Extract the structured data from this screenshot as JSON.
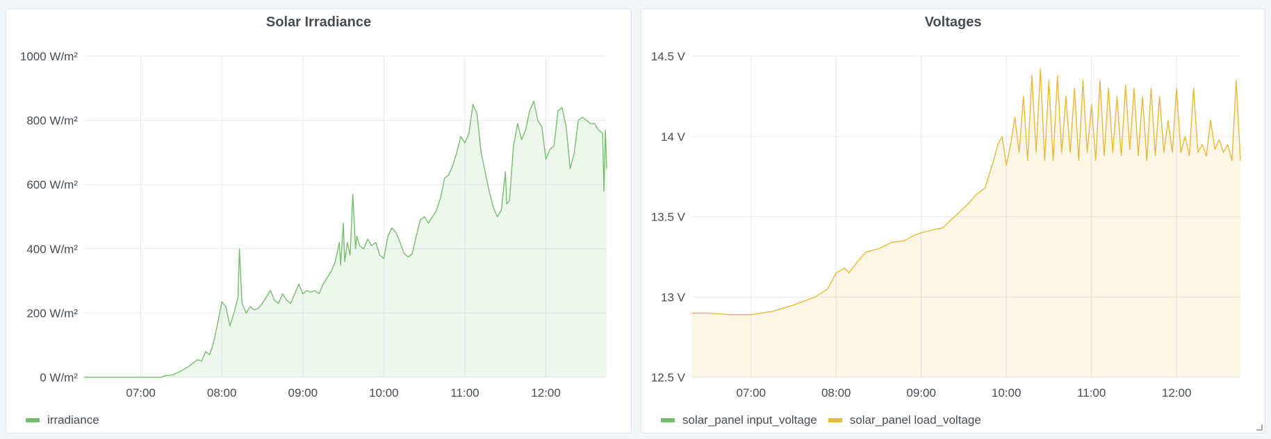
{
  "chart_data": [
    {
      "type": "area",
      "title": "Solar Irradiance",
      "x_labels": [
        "07:00",
        "08:00",
        "09:00",
        "10:00",
        "11:00",
        "12:00"
      ],
      "x_range": [
        "06:18",
        "12:45"
      ],
      "y_ticks": [
        "0 W/m²",
        "200 W/m²",
        "400 W/m²",
        "600 W/m²",
        "800 W/m²",
        "1000 W/m²"
      ],
      "ylim": [
        0,
        1000
      ],
      "grid": true,
      "legend_position": "bottom-left",
      "series": [
        {
          "name": "irradiance",
          "color": "#73bf69",
          "points": [
            [
              "06:18",
              0
            ],
            [
              "07:00",
              0
            ],
            [
              "07:15",
              0
            ],
            [
              "07:18",
              5
            ],
            [
              "07:24",
              8
            ],
            [
              "07:30",
              20
            ],
            [
              "07:36",
              35
            ],
            [
              "07:42",
              55
            ],
            [
              "07:45",
              50
            ],
            [
              "07:48",
              80
            ],
            [
              "07:51",
              70
            ],
            [
              "07:54",
              110
            ],
            [
              "07:57",
              170
            ],
            [
              "08:00",
              235
            ],
            [
              "08:03",
              220
            ],
            [
              "08:06",
              160
            ],
            [
              "08:09",
              200
            ],
            [
              "08:12",
              250
            ],
            [
              "08:13",
              400
            ],
            [
              "08:15",
              230
            ],
            [
              "08:18",
              200
            ],
            [
              "08:21",
              220
            ],
            [
              "08:24",
              210
            ],
            [
              "08:27",
              215
            ],
            [
              "08:30",
              230
            ],
            [
              "08:33",
              250
            ],
            [
              "08:36",
              270
            ],
            [
              "08:39",
              240
            ],
            [
              "08:42",
              230
            ],
            [
              "08:45",
              260
            ],
            [
              "08:48",
              240
            ],
            [
              "08:51",
              230
            ],
            [
              "08:54",
              260
            ],
            [
              "08:57",
              290
            ],
            [
              "09:00",
              260
            ],
            [
              "09:03",
              270
            ],
            [
              "09:06",
              265
            ],
            [
              "09:09",
              270
            ],
            [
              "09:12",
              260
            ],
            [
              "09:15",
              290
            ],
            [
              "09:18",
              310
            ],
            [
              "09:21",
              330
            ],
            [
              "09:24",
              360
            ],
            [
              "09:27",
              420
            ],
            [
              "09:28",
              350
            ],
            [
              "09:30",
              480
            ],
            [
              "09:31",
              360
            ],
            [
              "09:33",
              420
            ],
            [
              "09:35",
              380
            ],
            [
              "09:37",
              570
            ],
            [
              "09:39",
              400
            ],
            [
              "09:40",
              440
            ],
            [
              "09:42",
              410
            ],
            [
              "09:45",
              400
            ],
            [
              "09:48",
              430
            ],
            [
              "09:51",
              410
            ],
            [
              "09:54",
              420
            ],
            [
              "09:57",
              380
            ],
            [
              "10:00",
              370
            ],
            [
              "10:03",
              440
            ],
            [
              "10:06",
              465
            ],
            [
              "10:09",
              450
            ],
            [
              "10:12",
              420
            ],
            [
              "10:15",
              385
            ],
            [
              "10:18",
              375
            ],
            [
              "10:21",
              385
            ],
            [
              "10:24",
              440
            ],
            [
              "10:27",
              490
            ],
            [
              "10:30",
              500
            ],
            [
              "10:33",
              480
            ],
            [
              "10:36",
              500
            ],
            [
              "10:39",
              520
            ],
            [
              "10:42",
              560
            ],
            [
              "10:45",
              620
            ],
            [
              "10:48",
              630
            ],
            [
              "10:51",
              660
            ],
            [
              "10:54",
              700
            ],
            [
              "10:57",
              750
            ],
            [
              "11:00",
              730
            ],
            [
              "11:03",
              760
            ],
            [
              "11:06",
              850
            ],
            [
              "11:09",
              820
            ],
            [
              "11:12",
              700
            ],
            [
              "11:15",
              640
            ],
            [
              "11:18",
              580
            ],
            [
              "11:21",
              530
            ],
            [
              "11:24",
              500
            ],
            [
              "11:27",
              520
            ],
            [
              "11:30",
              640
            ],
            [
              "11:31",
              540
            ],
            [
              "11:33",
              550
            ],
            [
              "11:36",
              720
            ],
            [
              "11:39",
              790
            ],
            [
              "11:42",
              740
            ],
            [
              "11:45",
              770
            ],
            [
              "11:48",
              830
            ],
            [
              "11:51",
              860
            ],
            [
              "11:54",
              800
            ],
            [
              "11:57",
              780
            ],
            [
              "12:00",
              680
            ],
            [
              "12:03",
              710
            ],
            [
              "12:06",
              720
            ],
            [
              "12:09",
              830
            ],
            [
              "12:12",
              840
            ],
            [
              "12:15",
              780
            ],
            [
              "12:18",
              650
            ],
            [
              "12:21",
              700
            ],
            [
              "12:24",
              800
            ],
            [
              "12:27",
              810
            ],
            [
              "12:30",
              800
            ],
            [
              "12:33",
              790
            ],
            [
              "12:36",
              790
            ],
            [
              "12:39",
              770
            ],
            [
              "12:42",
              760
            ],
            [
              "12:43",
              580
            ],
            [
              "12:44",
              770
            ],
            [
              "12:45",
              650
            ]
          ]
        }
      ]
    },
    {
      "type": "area",
      "title": "Voltages",
      "x_labels": [
        "07:00",
        "08:00",
        "09:00",
        "10:00",
        "11:00",
        "12:00"
      ],
      "x_range": [
        "06:18",
        "12:45"
      ],
      "y_ticks": [
        "12.5 V",
        "13 V",
        "13.5 V",
        "14 V",
        "14.5 V"
      ],
      "ylim": [
        12.5,
        14.5
      ],
      "grid": true,
      "legend_position": "bottom-left",
      "series": [
        {
          "name": "solar_panel input_voltage",
          "color": "#73bf69",
          "points": []
        },
        {
          "name": "solar_panel load_voltage",
          "color": "#eab839",
          "points": [
            [
              "06:18",
              12.9
            ],
            [
              "06:30",
              12.9
            ],
            [
              "06:45",
              12.89
            ],
            [
              "07:00",
              12.89
            ],
            [
              "07:15",
              12.91
            ],
            [
              "07:30",
              12.95
            ],
            [
              "07:45",
              13.0
            ],
            [
              "07:54",
              13.05
            ],
            [
              "08:00",
              13.15
            ],
            [
              "08:06",
              13.18
            ],
            [
              "08:09",
              13.15
            ],
            [
              "08:15",
              13.22
            ],
            [
              "08:21",
              13.28
            ],
            [
              "08:30",
              13.3
            ],
            [
              "08:39",
              13.34
            ],
            [
              "08:48",
              13.35
            ],
            [
              "08:54",
              13.38
            ],
            [
              "09:00",
              13.4
            ],
            [
              "09:09",
              13.42
            ],
            [
              "09:15",
              13.43
            ],
            [
              "09:21",
              13.48
            ],
            [
              "09:27",
              13.53
            ],
            [
              "09:33",
              13.58
            ],
            [
              "09:39",
              13.64
            ],
            [
              "09:45",
              13.68
            ],
            [
              "09:51",
              13.85
            ],
            [
              "09:54",
              13.95
            ],
            [
              "09:57",
              14.0
            ],
            [
              "10:00",
              13.82
            ],
            [
              "10:03",
              13.95
            ],
            [
              "10:06",
              14.12
            ],
            [
              "10:09",
              13.9
            ],
            [
              "10:12",
              14.25
            ],
            [
              "10:15",
              13.85
            ],
            [
              "10:18",
              14.38
            ],
            [
              "10:21",
              13.9
            ],
            [
              "10:24",
              14.42
            ],
            [
              "10:27",
              13.85
            ],
            [
              "10:30",
              14.35
            ],
            [
              "10:33",
              13.85
            ],
            [
              "10:36",
              14.38
            ],
            [
              "10:39",
              13.9
            ],
            [
              "10:42",
              14.25
            ],
            [
              "10:45",
              13.9
            ],
            [
              "10:48",
              14.3
            ],
            [
              "10:51",
              13.85
            ],
            [
              "10:54",
              14.35
            ],
            [
              "10:57",
              13.9
            ],
            [
              "11:00",
              14.2
            ],
            [
              "11:03",
              13.85
            ],
            [
              "11:06",
              14.35
            ],
            [
              "11:09",
              13.88
            ],
            [
              "11:12",
              14.3
            ],
            [
              "11:15",
              13.9
            ],
            [
              "11:18",
              14.25
            ],
            [
              "11:21",
              13.88
            ],
            [
              "11:24",
              14.32
            ],
            [
              "11:27",
              13.92
            ],
            [
              "11:30",
              14.3
            ],
            [
              "11:33",
              13.88
            ],
            [
              "11:36",
              14.25
            ],
            [
              "11:39",
              13.85
            ],
            [
              "11:42",
              14.3
            ],
            [
              "11:45",
              13.88
            ],
            [
              "11:48",
              14.25
            ],
            [
              "11:51",
              13.9
            ],
            [
              "11:54",
              14.1
            ],
            [
              "11:57",
              13.9
            ],
            [
              "12:00",
              14.3
            ],
            [
              "12:03",
              13.9
            ],
            [
              "12:06",
              14.0
            ],
            [
              "12:09",
              13.88
            ],
            [
              "12:12",
              14.3
            ],
            [
              "12:15",
              13.9
            ],
            [
              "12:18",
              13.95
            ],
            [
              "12:21",
              13.88
            ],
            [
              "12:24",
              14.1
            ],
            [
              "12:27",
              13.92
            ],
            [
              "12:30",
              13.98
            ],
            [
              "12:33",
              13.9
            ],
            [
              "12:36",
              13.95
            ],
            [
              "12:39",
              13.85
            ],
            [
              "12:42",
              14.35
            ],
            [
              "12:45",
              13.85
            ]
          ]
        }
      ]
    }
  ]
}
